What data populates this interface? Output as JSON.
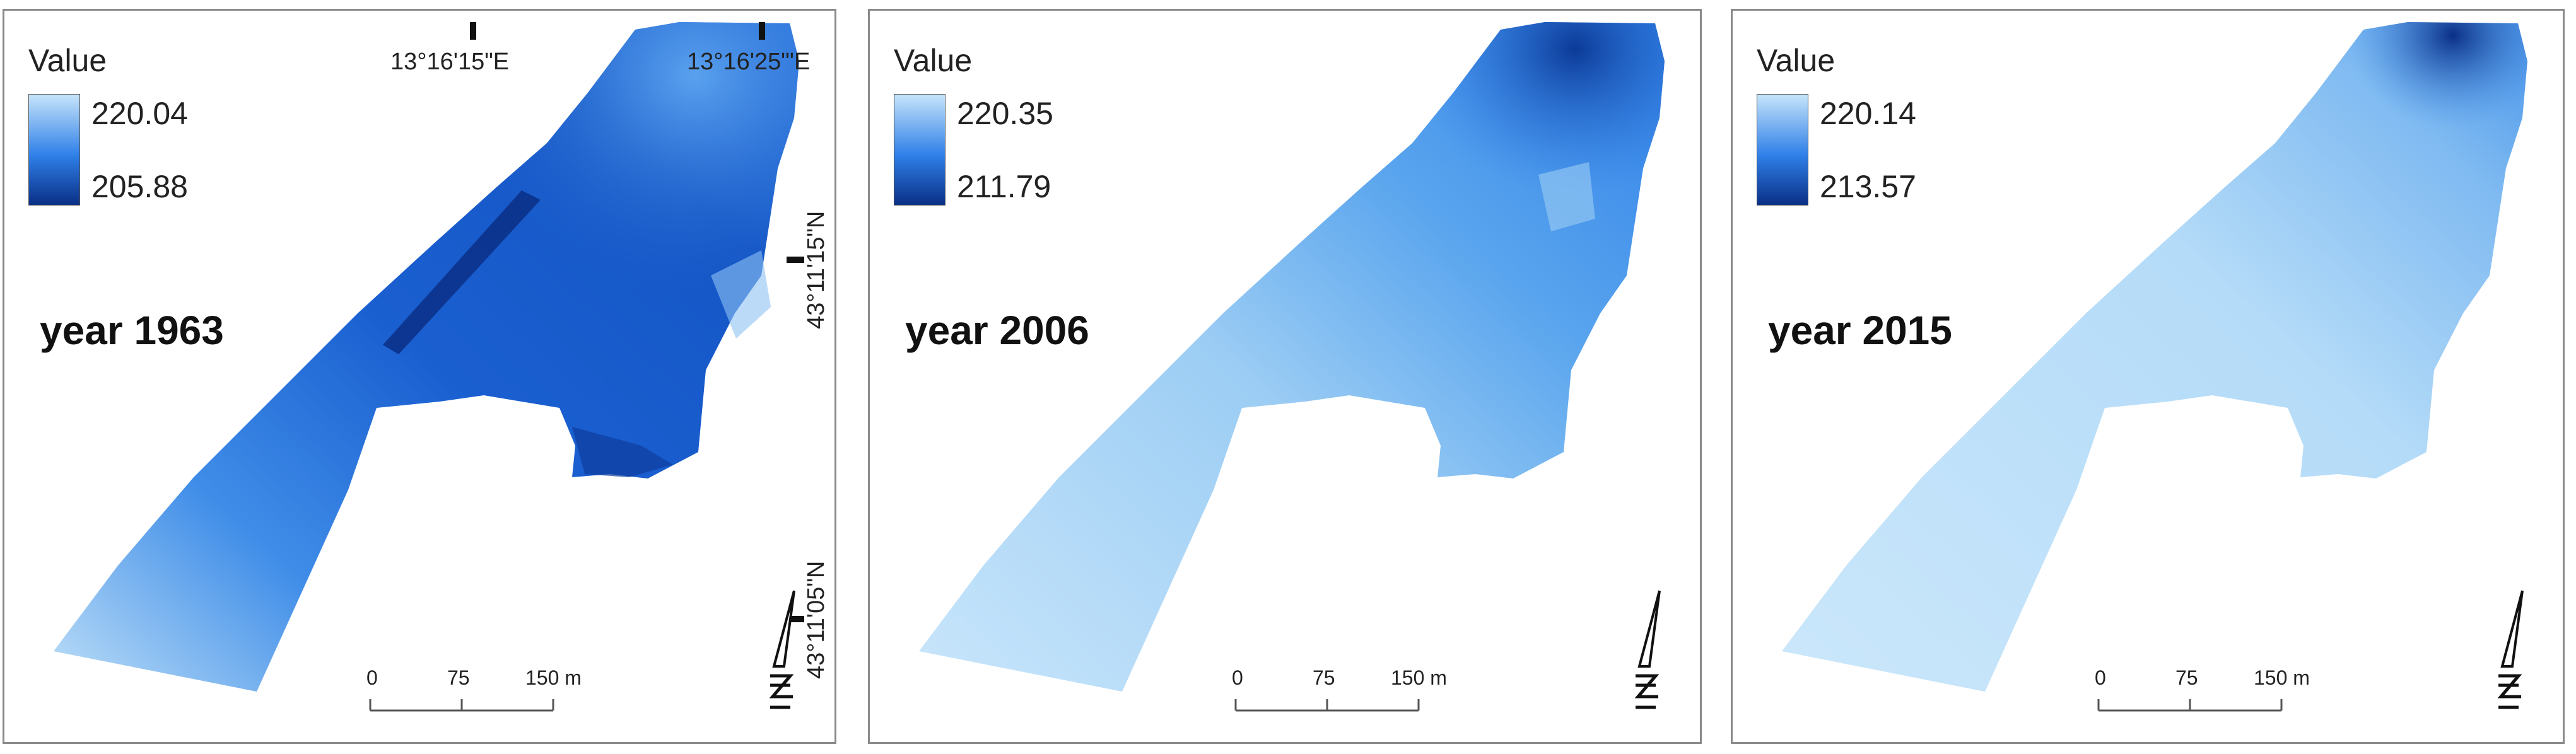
{
  "legend_title": "Value",
  "colors": {
    "light": "#c6e4fa",
    "mid": "#2f80e8",
    "dark": "#0a2f86",
    "frame": "#8a8a8a"
  },
  "scale_bar": {
    "tick_0": "0",
    "tick_75": "75",
    "tick_150": "150 m"
  },
  "coordinates": {
    "lon_1": "13°16'15\"E",
    "lon_2": "13°16'25\"'E",
    "lat_1": "43°11'15\"N",
    "lat_2": "43°11'05\"N"
  },
  "panels": [
    {
      "year_label": "year 1963",
      "legend_max": "220.04",
      "legend_min": "205.88"
    },
    {
      "year_label": "year 2006",
      "legend_max": "220.35",
      "legend_min": "211.79"
    },
    {
      "year_label": "year 2015",
      "legend_max": "220.14",
      "legend_min": "213.57"
    }
  ]
}
